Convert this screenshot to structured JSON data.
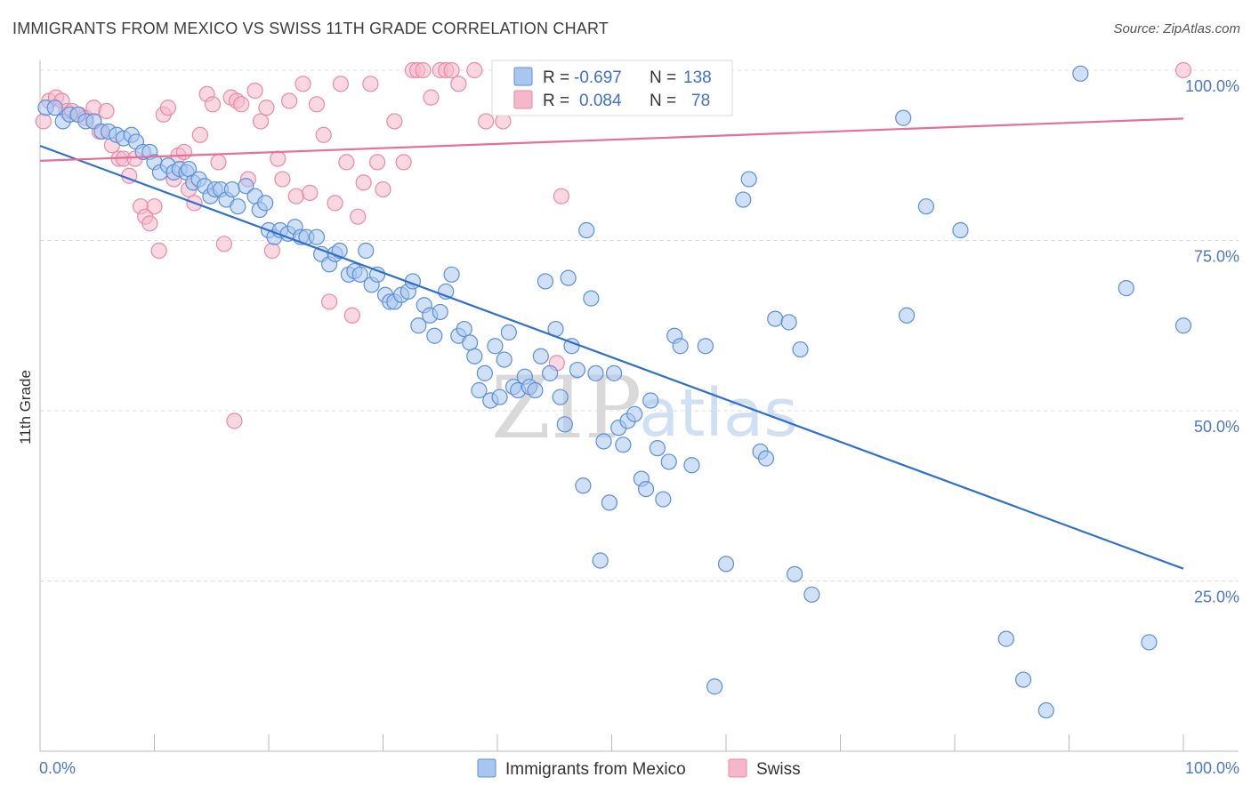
{
  "header": {
    "title": "IMMIGRANTS FROM MEXICO VS SWISS 11TH GRADE CORRELATION CHART",
    "source": "Source: ZipAtlas.com"
  },
  "legend_box": {
    "rows": [
      {
        "r_label": "R =",
        "r_value": "-0.697",
        "n_label": "N =",
        "n_value": "138"
      },
      {
        "r_label": "R =",
        "r_value": "0.084",
        "n_label": "N =",
        "n_value": "78"
      }
    ]
  },
  "bottom_legend": {
    "items": [
      "Immigrants from Mexico",
      "Swiss"
    ]
  },
  "watermark": {
    "part1": "ZIP",
    "part2": "atlas"
  },
  "colors": {
    "mexico_fill": "#a9c6f0",
    "mexico_stroke": "#5b8fd8",
    "mexico_line": "#2f6fd0",
    "swiss_fill": "#f5b8cb",
    "swiss_stroke": "#e88aa6",
    "swiss_line": "#e56f97",
    "grid": "#dcdcdc",
    "tick_text": "#4a78c9"
  },
  "chart_data": {
    "type": "scatter",
    "title": "IMMIGRANTS FROM MEXICO VS SWISS 11TH GRADE CORRELATION CHART",
    "xlabel": "",
    "ylabel": "11th Grade",
    "xlim": [
      0,
      100
    ],
    "ylim": [
      0,
      100
    ],
    "x_tick_labels": [
      "0.0%",
      "100.0%"
    ],
    "y_tick_labels": [
      "100.0%",
      "75.0%",
      "50.0%",
      "25.0%"
    ],
    "y_tick_values": [
      100,
      75,
      50,
      25
    ],
    "grid": "horizontal dashed",
    "legend": "top-center",
    "series": [
      {
        "name": "Immigrants from Mexico",
        "r": -0.697,
        "n": 138,
        "trend": {
          "x1": 0,
          "y1": 88.9,
          "x2": 100,
          "y2": 26.8
        },
        "points": [
          [
            0.5,
            94.5
          ],
          [
            1.3,
            94.5
          ],
          [
            2.0,
            92.5
          ],
          [
            2.6,
            93.5
          ],
          [
            3.3,
            93.5
          ],
          [
            4.0,
            92.5
          ],
          [
            4.7,
            92.5
          ],
          [
            5.4,
            91.0
          ],
          [
            6.0,
            91.0
          ],
          [
            6.7,
            90.5
          ],
          [
            7.3,
            90.0
          ],
          [
            8.0,
            90.5
          ],
          [
            8.4,
            89.5
          ],
          [
            9.0,
            88.0
          ],
          [
            9.6,
            88.0
          ],
          [
            10.0,
            86.5
          ],
          [
            10.5,
            85.0
          ],
          [
            11.2,
            86.0
          ],
          [
            11.7,
            85.0
          ],
          [
            12.2,
            85.5
          ],
          [
            12.8,
            85.0
          ],
          [
            13.0,
            85.5
          ],
          [
            13.4,
            83.5
          ],
          [
            13.9,
            84.0
          ],
          [
            14.4,
            83.0
          ],
          [
            14.9,
            81.5
          ],
          [
            15.3,
            82.5
          ],
          [
            15.8,
            82.5
          ],
          [
            16.3,
            81.0
          ],
          [
            16.8,
            82.5
          ],
          [
            17.3,
            80.0
          ],
          [
            18.0,
            83.0
          ],
          [
            18.8,
            81.5
          ],
          [
            19.2,
            79.5
          ],
          [
            19.7,
            80.5
          ],
          [
            20.0,
            76.5
          ],
          [
            20.5,
            75.5
          ],
          [
            21.0,
            76.5
          ],
          [
            21.7,
            76.0
          ],
          [
            22.3,
            77.0
          ],
          [
            22.8,
            75.5
          ],
          [
            23.3,
            75.5
          ],
          [
            24.2,
            75.5
          ],
          [
            24.6,
            73.0
          ],
          [
            25.3,
            71.5
          ],
          [
            25.8,
            73.0
          ],
          [
            26.2,
            73.5
          ],
          [
            27.0,
            70.0
          ],
          [
            27.5,
            70.5
          ],
          [
            28.0,
            70.0
          ],
          [
            28.5,
            73.5
          ],
          [
            29.0,
            68.5
          ],
          [
            29.5,
            70.0
          ],
          [
            30.2,
            67.0
          ],
          [
            30.6,
            66.0
          ],
          [
            31.0,
            66.0
          ],
          [
            31.6,
            67.0
          ],
          [
            32.2,
            67.5
          ],
          [
            32.6,
            69.0
          ],
          [
            33.1,
            62.5
          ],
          [
            33.6,
            65.5
          ],
          [
            34.1,
            64.0
          ],
          [
            34.5,
            61.0
          ],
          [
            35.0,
            64.5
          ],
          [
            35.5,
            67.5
          ],
          [
            36.0,
            70.0
          ],
          [
            36.6,
            61.0
          ],
          [
            37.1,
            62.0
          ],
          [
            37.6,
            60.0
          ],
          [
            38.0,
            58.0
          ],
          [
            38.4,
            53.0
          ],
          [
            38.9,
            55.5
          ],
          [
            39.4,
            51.5
          ],
          [
            39.8,
            59.5
          ],
          [
            40.2,
            52.0
          ],
          [
            40.6,
            57.5
          ],
          [
            41.0,
            61.5
          ],
          [
            41.4,
            53.5
          ],
          [
            41.8,
            53.0
          ],
          [
            42.4,
            55.0
          ],
          [
            42.8,
            53.5
          ],
          [
            43.3,
            53.0
          ],
          [
            43.8,
            58.0
          ],
          [
            44.2,
            69.0
          ],
          [
            44.6,
            55.5
          ],
          [
            45.1,
            62.0
          ],
          [
            45.5,
            52.0
          ],
          [
            45.9,
            48.0
          ],
          [
            46.2,
            69.5
          ],
          [
            46.5,
            59.5
          ],
          [
            47.0,
            56.0
          ],
          [
            47.5,
            39.0
          ],
          [
            47.8,
            76.5
          ],
          [
            48.2,
            66.5
          ],
          [
            48.6,
            55.5
          ],
          [
            49.0,
            28.0
          ],
          [
            49.3,
            45.5
          ],
          [
            49.8,
            36.5
          ],
          [
            50.2,
            55.5
          ],
          [
            50.6,
            47.5
          ],
          [
            51.0,
            45.0
          ],
          [
            51.4,
            48.5
          ],
          [
            52.0,
            49.5
          ],
          [
            52.6,
            40.0
          ],
          [
            53.0,
            38.5
          ],
          [
            53.4,
            51.5
          ],
          [
            54.0,
            44.5
          ],
          [
            54.5,
            37.0
          ],
          [
            55.0,
            42.5
          ],
          [
            55.5,
            61.0
          ],
          [
            56.0,
            59.5
          ],
          [
            57.0,
            42.0
          ],
          [
            58.2,
            59.5
          ],
          [
            59.0,
            9.5
          ],
          [
            60.0,
            27.5
          ],
          [
            61.5,
            81.0
          ],
          [
            62.0,
            84.0
          ],
          [
            63.0,
            44.0
          ],
          [
            63.5,
            43.0
          ],
          [
            64.3,
            63.5
          ],
          [
            65.5,
            63.0
          ],
          [
            66.0,
            26.0
          ],
          [
            66.5,
            59.0
          ],
          [
            67.5,
            23.0
          ],
          [
            75.5,
            93.0
          ],
          [
            75.8,
            64.0
          ],
          [
            77.5,
            80.0
          ],
          [
            80.5,
            76.5
          ],
          [
            84.5,
            16.5
          ],
          [
            86.0,
            10.5
          ],
          [
            88.0,
            6.0
          ],
          [
            91.0,
            99.5
          ],
          [
            95.0,
            68.0
          ],
          [
            97.0,
            16.0
          ],
          [
            100.0,
            62.5
          ]
        ]
      },
      {
        "name": "Swiss",
        "r": 0.084,
        "n": 78,
        "trend": {
          "x1": 0,
          "y1": 86.7,
          "x2": 100,
          "y2": 92.9
        },
        "points": [
          [
            0.3,
            92.5
          ],
          [
            0.8,
            95.5
          ],
          [
            1.4,
            96.0
          ],
          [
            1.9,
            95.5
          ],
          [
            2.3,
            94.0
          ],
          [
            2.8,
            94.0
          ],
          [
            3.4,
            93.5
          ],
          [
            4.0,
            93.0
          ],
          [
            4.7,
            94.5
          ],
          [
            5.2,
            91.0
          ],
          [
            5.8,
            94.0
          ],
          [
            6.3,
            89.0
          ],
          [
            6.9,
            87.0
          ],
          [
            7.3,
            87.0
          ],
          [
            7.8,
            84.5
          ],
          [
            8.3,
            87.0
          ],
          [
            8.8,
            80.0
          ],
          [
            9.2,
            78.5
          ],
          [
            9.6,
            77.5
          ],
          [
            10.0,
            80.0
          ],
          [
            10.4,
            73.5
          ],
          [
            10.8,
            93.5
          ],
          [
            11.2,
            94.5
          ],
          [
            11.7,
            84.0
          ],
          [
            12.1,
            87.5
          ],
          [
            12.6,
            88.0
          ],
          [
            13.0,
            82.5
          ],
          [
            13.5,
            80.5
          ],
          [
            14.0,
            90.5
          ],
          [
            14.6,
            96.5
          ],
          [
            15.1,
            95.0
          ],
          [
            15.6,
            86.5
          ],
          [
            16.1,
            74.5
          ],
          [
            16.7,
            96.0
          ],
          [
            17.2,
            95.5
          ],
          [
            17.6,
            95.0
          ],
          [
            18.2,
            84.0
          ],
          [
            18.8,
            97.0
          ],
          [
            19.3,
            92.5
          ],
          [
            19.8,
            94.5
          ],
          [
            20.3,
            73.5
          ],
          [
            20.8,
            87.0
          ],
          [
            21.2,
            84.0
          ],
          [
            21.8,
            95.5
          ],
          [
            22.4,
            81.5
          ],
          [
            23.0,
            98.0
          ],
          [
            23.6,
            82.0
          ],
          [
            24.2,
            95.0
          ],
          [
            24.8,
            90.5
          ],
          [
            25.3,
            66.0
          ],
          [
            25.8,
            80.5
          ],
          [
            26.3,
            98.0
          ],
          [
            26.8,
            86.5
          ],
          [
            27.3,
            64.0
          ],
          [
            27.8,
            78.5
          ],
          [
            28.3,
            83.5
          ],
          [
            28.9,
            98.0
          ],
          [
            29.5,
            86.5
          ],
          [
            30.0,
            82.5
          ],
          [
            31.0,
            92.5
          ],
          [
            31.8,
            86.5
          ],
          [
            32.6,
            100.0
          ],
          [
            33.0,
            100.0
          ],
          [
            33.5,
            100.0
          ],
          [
            34.2,
            96.0
          ],
          [
            35.0,
            100.0
          ],
          [
            35.5,
            100.0
          ],
          [
            36.0,
            100.0
          ],
          [
            36.6,
            98.0
          ],
          [
            38.0,
            100.0
          ],
          [
            39.0,
            92.5
          ],
          [
            40.5,
            92.5
          ],
          [
            42.5,
            100.0
          ],
          [
            45.2,
            57.0
          ],
          [
            45.6,
            81.5
          ],
          [
            50.0,
            100.0
          ],
          [
            17.0,
            48.5
          ],
          [
            100.0,
            100.0
          ]
        ]
      }
    ]
  }
}
